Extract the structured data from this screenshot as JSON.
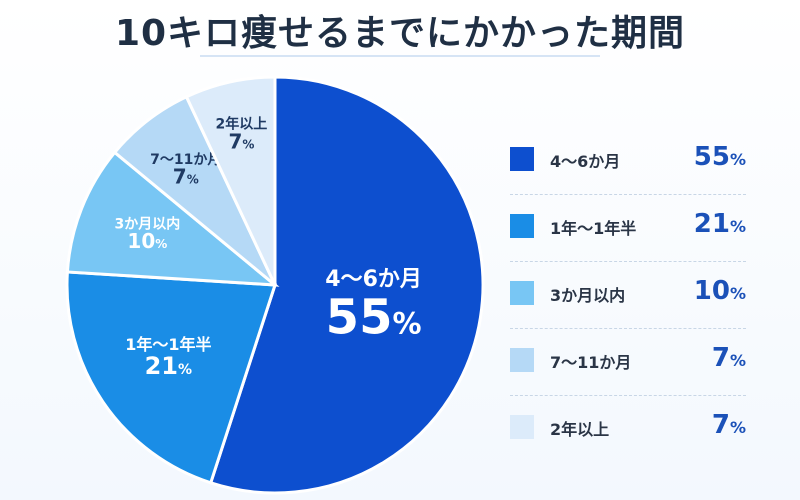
{
  "title": "10キロ痩せるまでにかかった期間",
  "chart_data": {
    "type": "pie",
    "categories": [
      "4～6か月",
      "1年～1年半",
      "3か月以内",
      "7～11か月",
      "2年以上"
    ],
    "values": [
      55,
      21,
      10,
      7,
      7
    ],
    "value_suffix": "%",
    "colors": [
      "#0d4fcf",
      "#1a8de6",
      "#78c6f4",
      "#b5d9f6",
      "#dcebfa"
    ],
    "start_angle": "12 o'clock",
    "direction": "clockwise",
    "legend_position": "right"
  }
}
